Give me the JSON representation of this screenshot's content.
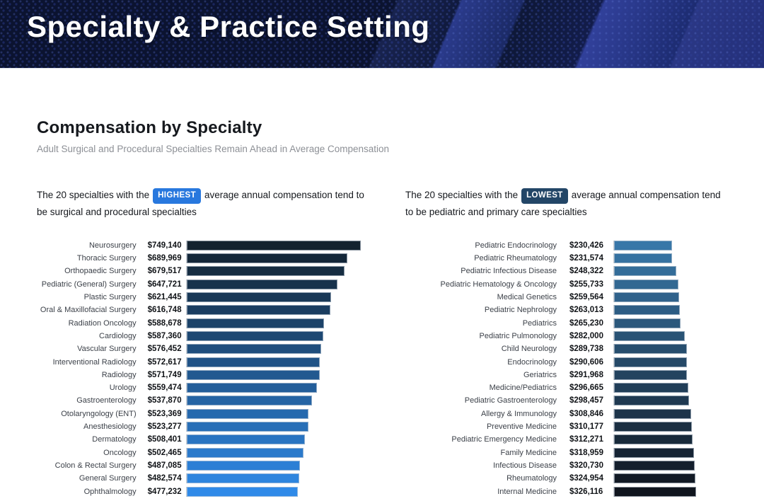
{
  "banner": {
    "title": "Specialty & Practice Setting",
    "bg_color": "#0c142e"
  },
  "section": {
    "title": "Compensation by Specialty",
    "subtitle": "Adult Surgical and Procedural Specialties Remain Ahead in Average Compensation"
  },
  "charts": [
    {
      "intro_before": "The 20 specialties with the",
      "badge": "HIGHEST",
      "intro_after": "average annual compensation tend to be surgical and procedural specialties",
      "badge_color": "#2878DE"
    },
    {
      "intro_before": "The 20 specialties with the",
      "badge": "LOWEST",
      "intro_after": "average annual compensation tend to be pediatric and primary care specialties",
      "badge_color": "#234667"
    }
  ],
  "chart_data": [
    {
      "type": "bar",
      "orientation": "horizontal",
      "title": "The 20 specialties with the HIGHEST average annual compensation tend to be surgical and procedural specialties",
      "categories": [
        "Neurosurgery",
        "Thoracic Surgery",
        "Orthopaedic Surgery",
        "Pediatric (General) Surgery",
        "Plastic Surgery",
        "Oral & Maxillofacial Surgery",
        "Radiation Oncology",
        "Cardiology",
        "Vascular Surgery",
        "Interventional Radiology",
        "Radiology",
        "Urology",
        "Gastroenterology",
        "Otolaryngology (ENT)",
        "Anesthesiology",
        "Dermatology",
        "Oncology",
        "Colon & Rectal Surgery",
        "General Surgery",
        "Ophthalmology"
      ],
      "values": [
        749140,
        689969,
        679517,
        647721,
        621445,
        616748,
        588678,
        587360,
        576452,
        572617,
        571749,
        559474,
        537870,
        523369,
        523277,
        508401,
        502465,
        487085,
        482574,
        477232
      ],
      "value_labels": [
        "$749,140",
        "$689,969",
        "$679,517",
        "$647,721",
        "$621,445",
        "$616,748",
        "$588,678",
        "$587,360",
        "$576,452",
        "$572,617",
        "$571,749",
        "$559,474",
        "$537,870",
        "$523,369",
        "$523,277",
        "$508,401",
        "$502,465",
        "$487,085",
        "$482,574",
        "$477,232"
      ],
      "xlim": [
        0,
        800000
      ],
      "grid": false,
      "legend": false,
      "bar_color_start": "#13222F",
      "bar_color_end": "#2F8AE8"
    },
    {
      "type": "bar",
      "orientation": "horizontal",
      "title": "The 20 specialties with the LOWEST average annual compensation tend to be pediatric and primary care specialties",
      "categories": [
        "Pediatric Endocrinology",
        "Pediatric Rheumatology",
        "Pediatric Infectious Disease",
        "Pediatric Hematology & Oncology",
        "Medical Genetics",
        "Pediatric Nephrology",
        "Pediatrics",
        "Pediatric Pulmonology",
        "Child Neurology",
        "Endocrinology",
        "Geriatrics",
        "Medicine/Pediatrics",
        "Pediatric Gastroenterology",
        "Allergy & Immunology",
        "Preventive Medicine",
        "Pediatric Emergency Medicine",
        "Family Medicine",
        "Infectious Disease",
        "Rheumatology",
        "Internal Medicine"
      ],
      "values": [
        230426,
        231574,
        248322,
        255733,
        259564,
        263013,
        265230,
        282000,
        289738,
        290606,
        291968,
        296665,
        298457,
        308846,
        310177,
        312271,
        318959,
        320730,
        324954,
        326116
      ],
      "value_labels": [
        "$230,426",
        "$231,574",
        "$248,322",
        "$255,733",
        "$259,564",
        "$263,013",
        "$265,230",
        "$282,000",
        "$289,738",
        "$290,606",
        "$291,968",
        "$296,665",
        "$298,457",
        "$308,846",
        "$310,177",
        "$312,271",
        "$318,959",
        "$320,730",
        "$324,954",
        "$326,116"
      ],
      "xlim": [
        0,
        350000
      ],
      "grid": false,
      "legend": false,
      "bar_color_start": "#3877A8",
      "bar_color_end": "#10151E"
    }
  ]
}
